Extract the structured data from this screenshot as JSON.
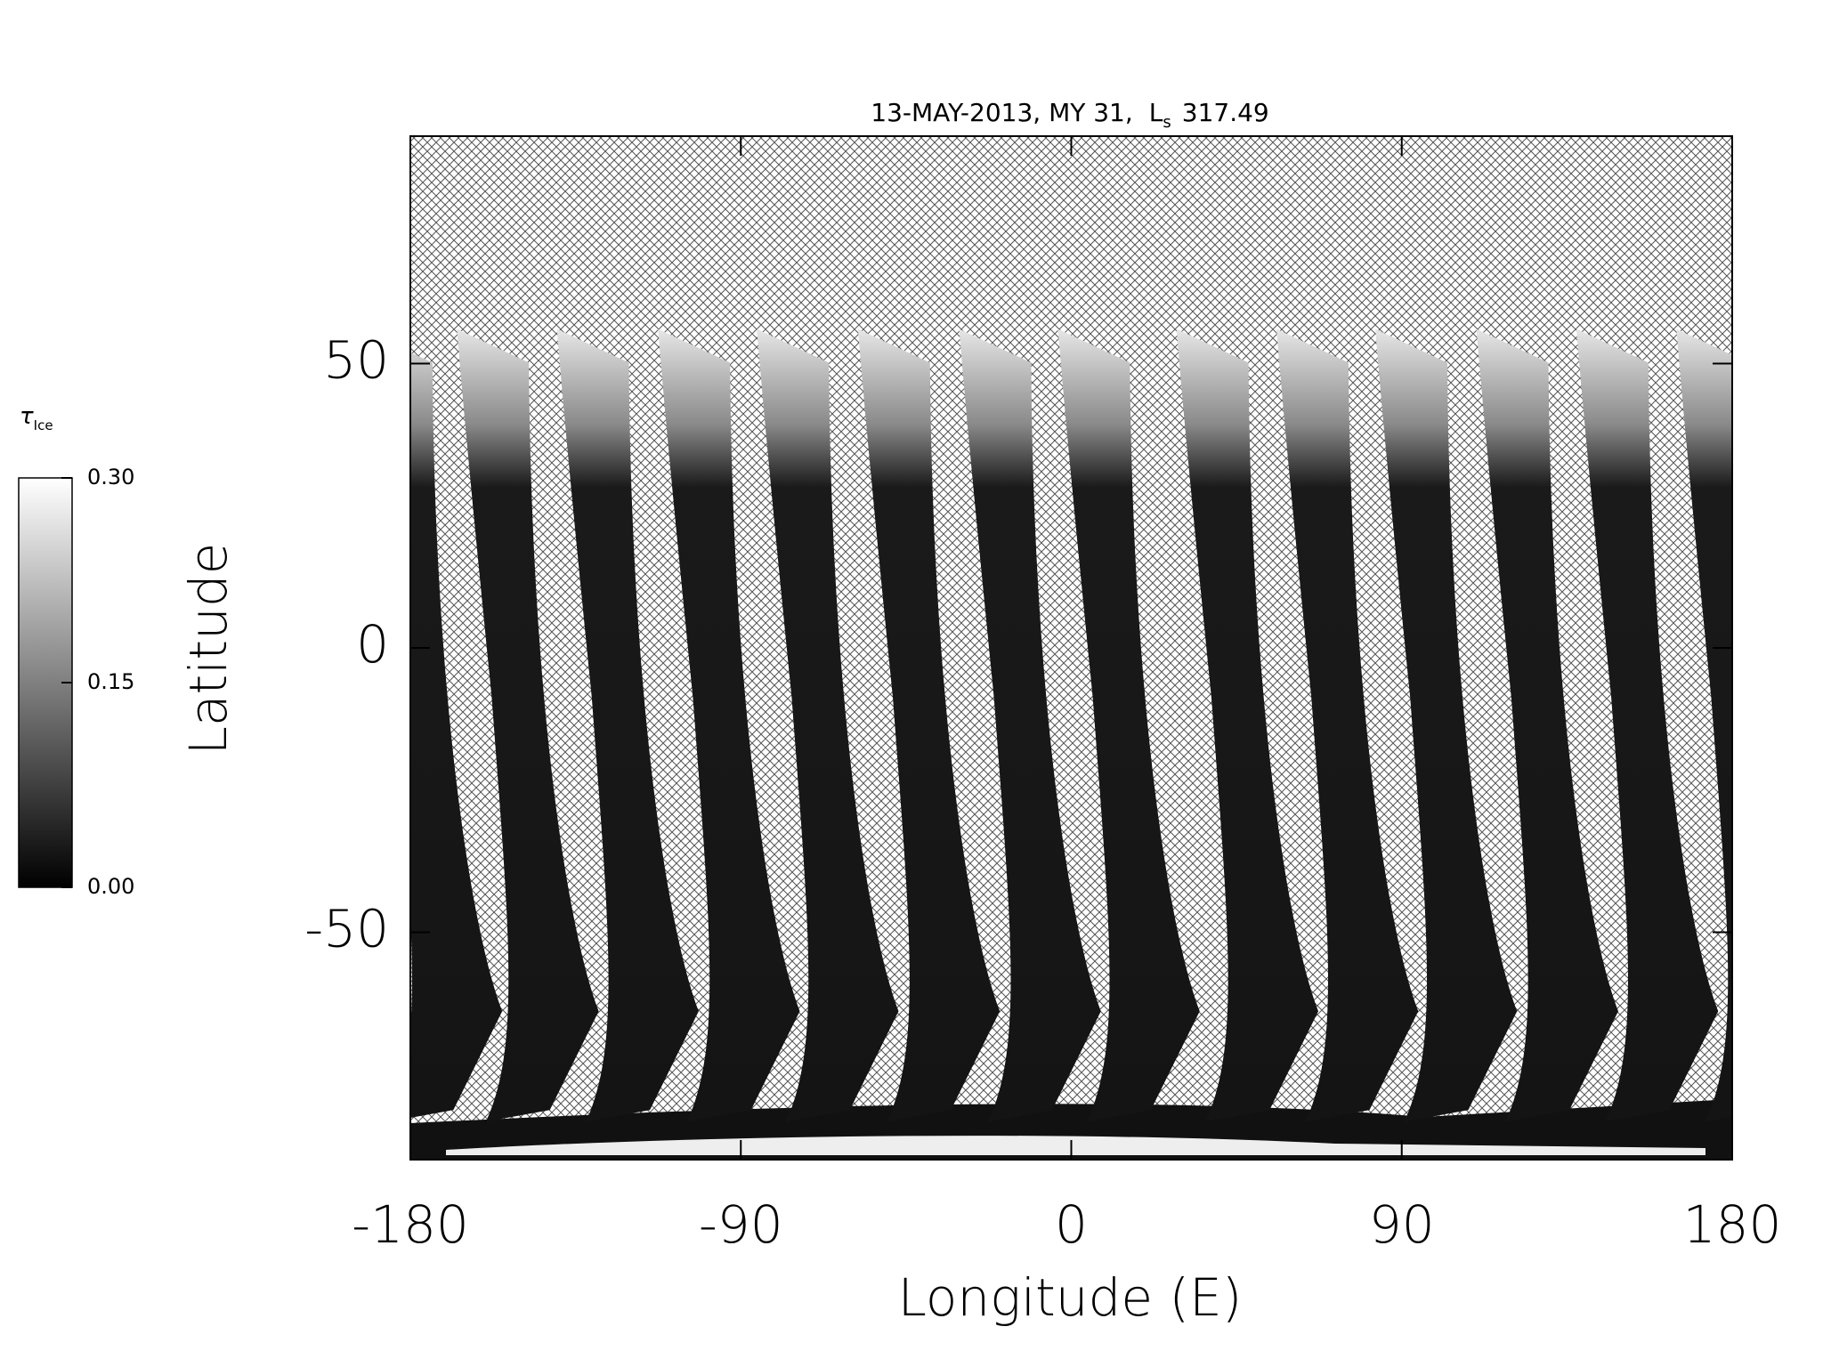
{
  "chart_data": {
    "type": "map",
    "title": "13-MAY-2013, MY 31,",
    "title_ls": "L",
    "title_ls_sub": "s",
    "title_ls_value": "317.49",
    "xlabel": "Longitude (E)",
    "ylabel": "Latitude",
    "xlim": [
      -180,
      180
    ],
    "ylim": [
      -90,
      90
    ],
    "xticks": [
      -180,
      -90,
      0,
      90,
      180
    ],
    "yticks": [
      -50,
      0,
      50
    ],
    "colorbar": {
      "label": "τ",
      "label_sub": "Ice",
      "lim": [
        0,
        0.3
      ],
      "ticks": [
        {
          "value": 0,
          "label": "0.00"
        },
        {
          "value": 0.15,
          "label": "0.15"
        },
        {
          "value": 0.3,
          "label": "0.30"
        }
      ]
    }
  }
}
